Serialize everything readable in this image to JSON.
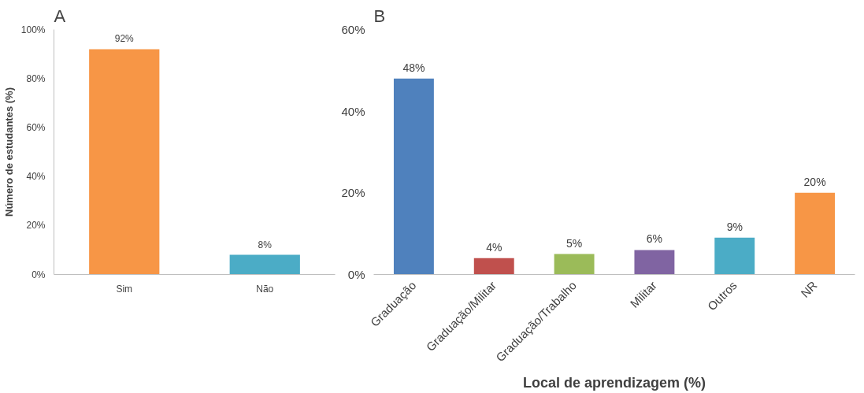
{
  "chart_data": [
    {
      "type": "bar",
      "title": "A",
      "ylabel": "Número de estudantes (%)",
      "categories": [
        "Sim",
        "Não"
      ],
      "values": [
        92,
        8
      ],
      "colors": [
        "#f79646",
        "#4bacc6"
      ],
      "value_labels": [
        "92%",
        "8%"
      ],
      "ylim": [
        0,
        100
      ],
      "yticks": [
        {
          "value": 0,
          "label": "0%"
        },
        {
          "value": 20,
          "label": "20%"
        },
        {
          "value": 40,
          "label": "40%"
        },
        {
          "value": 60,
          "label": "60%"
        },
        {
          "value": 80,
          "label": "80%"
        },
        {
          "value": 100,
          "label": "100%"
        }
      ],
      "grid": false
    },
    {
      "type": "bar",
      "title": "B",
      "xlabel": "Local de aprendizagem (%)",
      "categories": [
        "Graduação",
        "Graduação/Militar",
        "Graduação/Trabalho",
        "Militar",
        "Outros",
        "NR"
      ],
      "values": [
        48,
        4,
        5,
        6,
        9,
        20
      ],
      "colors": [
        "#4f81bd",
        "#c0504d",
        "#9bbb59",
        "#8064a2",
        "#4bacc6",
        "#f79646"
      ],
      "value_labels": [
        "48%",
        "4%",
        "5%",
        "6%",
        "9%",
        "20%"
      ],
      "ylim": [
        0,
        60
      ],
      "yticks": [
        {
          "value": 0,
          "label": "0%"
        },
        {
          "value": 20,
          "label": "20%"
        },
        {
          "value": 40,
          "label": "40%"
        },
        {
          "value": 60,
          "label": "60%"
        }
      ],
      "grid": false
    }
  ]
}
